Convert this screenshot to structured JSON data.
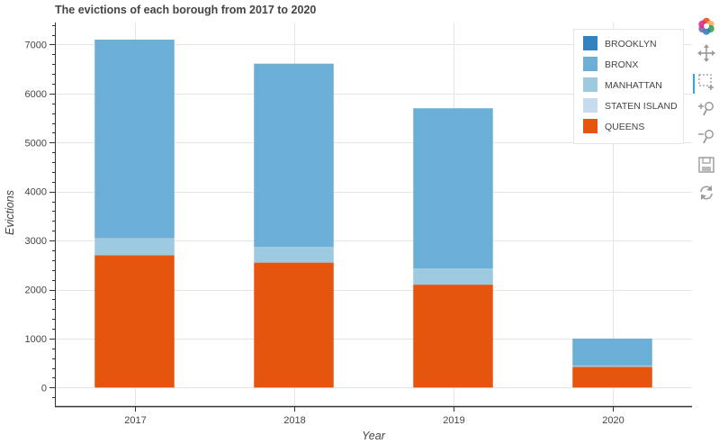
{
  "chart_data": {
    "type": "bar",
    "stacked": true,
    "title": "The evictions of each borough from 2017 to 2020",
    "xlabel": "Year",
    "ylabel": "Evictions",
    "categories": [
      "2017",
      "2018",
      "2019",
      "2020"
    ],
    "ylim": [
      -380,
      7450
    ],
    "yticks": [
      0,
      1000,
      2000,
      3000,
      4000,
      5000,
      6000,
      7000
    ],
    "grid": true,
    "legend_position": "top-right",
    "series": [
      {
        "name": "QUEENS",
        "color": "#e6550d",
        "values": [
          2700,
          2550,
          2100,
          420
        ]
      },
      {
        "name": "STATEN ISLAND",
        "color": "#c6dbef",
        "values": [
          0,
          0,
          0,
          0
        ]
      },
      {
        "name": "MANHATTAN",
        "color": "#9ecae1",
        "values": [
          350,
          320,
          330,
          30
        ]
      },
      {
        "name": "BRONX",
        "color": "#6baed6",
        "values": [
          4050,
          3740,
          3270,
          550
        ]
      },
      {
        "name": "BROOKLYN",
        "color": "#3182bd",
        "values": [
          0,
          0,
          0,
          0
        ]
      }
    ],
    "legend": [
      {
        "label": "BROOKLYN",
        "color": "#3182bd"
      },
      {
        "label": "BRONX",
        "color": "#6baed6"
      },
      {
        "label": "MANHATTAN",
        "color": "#9ecae1"
      },
      {
        "label": "STATEN ISLAND",
        "color": "#c6dbef"
      },
      {
        "label": "QUEENS",
        "color": "#e6550d"
      }
    ]
  },
  "toolbar": {
    "tools": [
      {
        "name": "bokeh-logo-icon",
        "interactable": true
      },
      {
        "name": "pan-tool-icon",
        "interactable": true
      },
      {
        "name": "box-zoom-tool-icon",
        "interactable": true,
        "active": true
      },
      {
        "name": "zoom-in-tool-icon",
        "interactable": true
      },
      {
        "name": "zoom-out-tool-icon",
        "interactable": true
      },
      {
        "name": "save-tool-icon",
        "interactable": true
      },
      {
        "name": "reset-tool-icon",
        "interactable": true
      }
    ]
  }
}
